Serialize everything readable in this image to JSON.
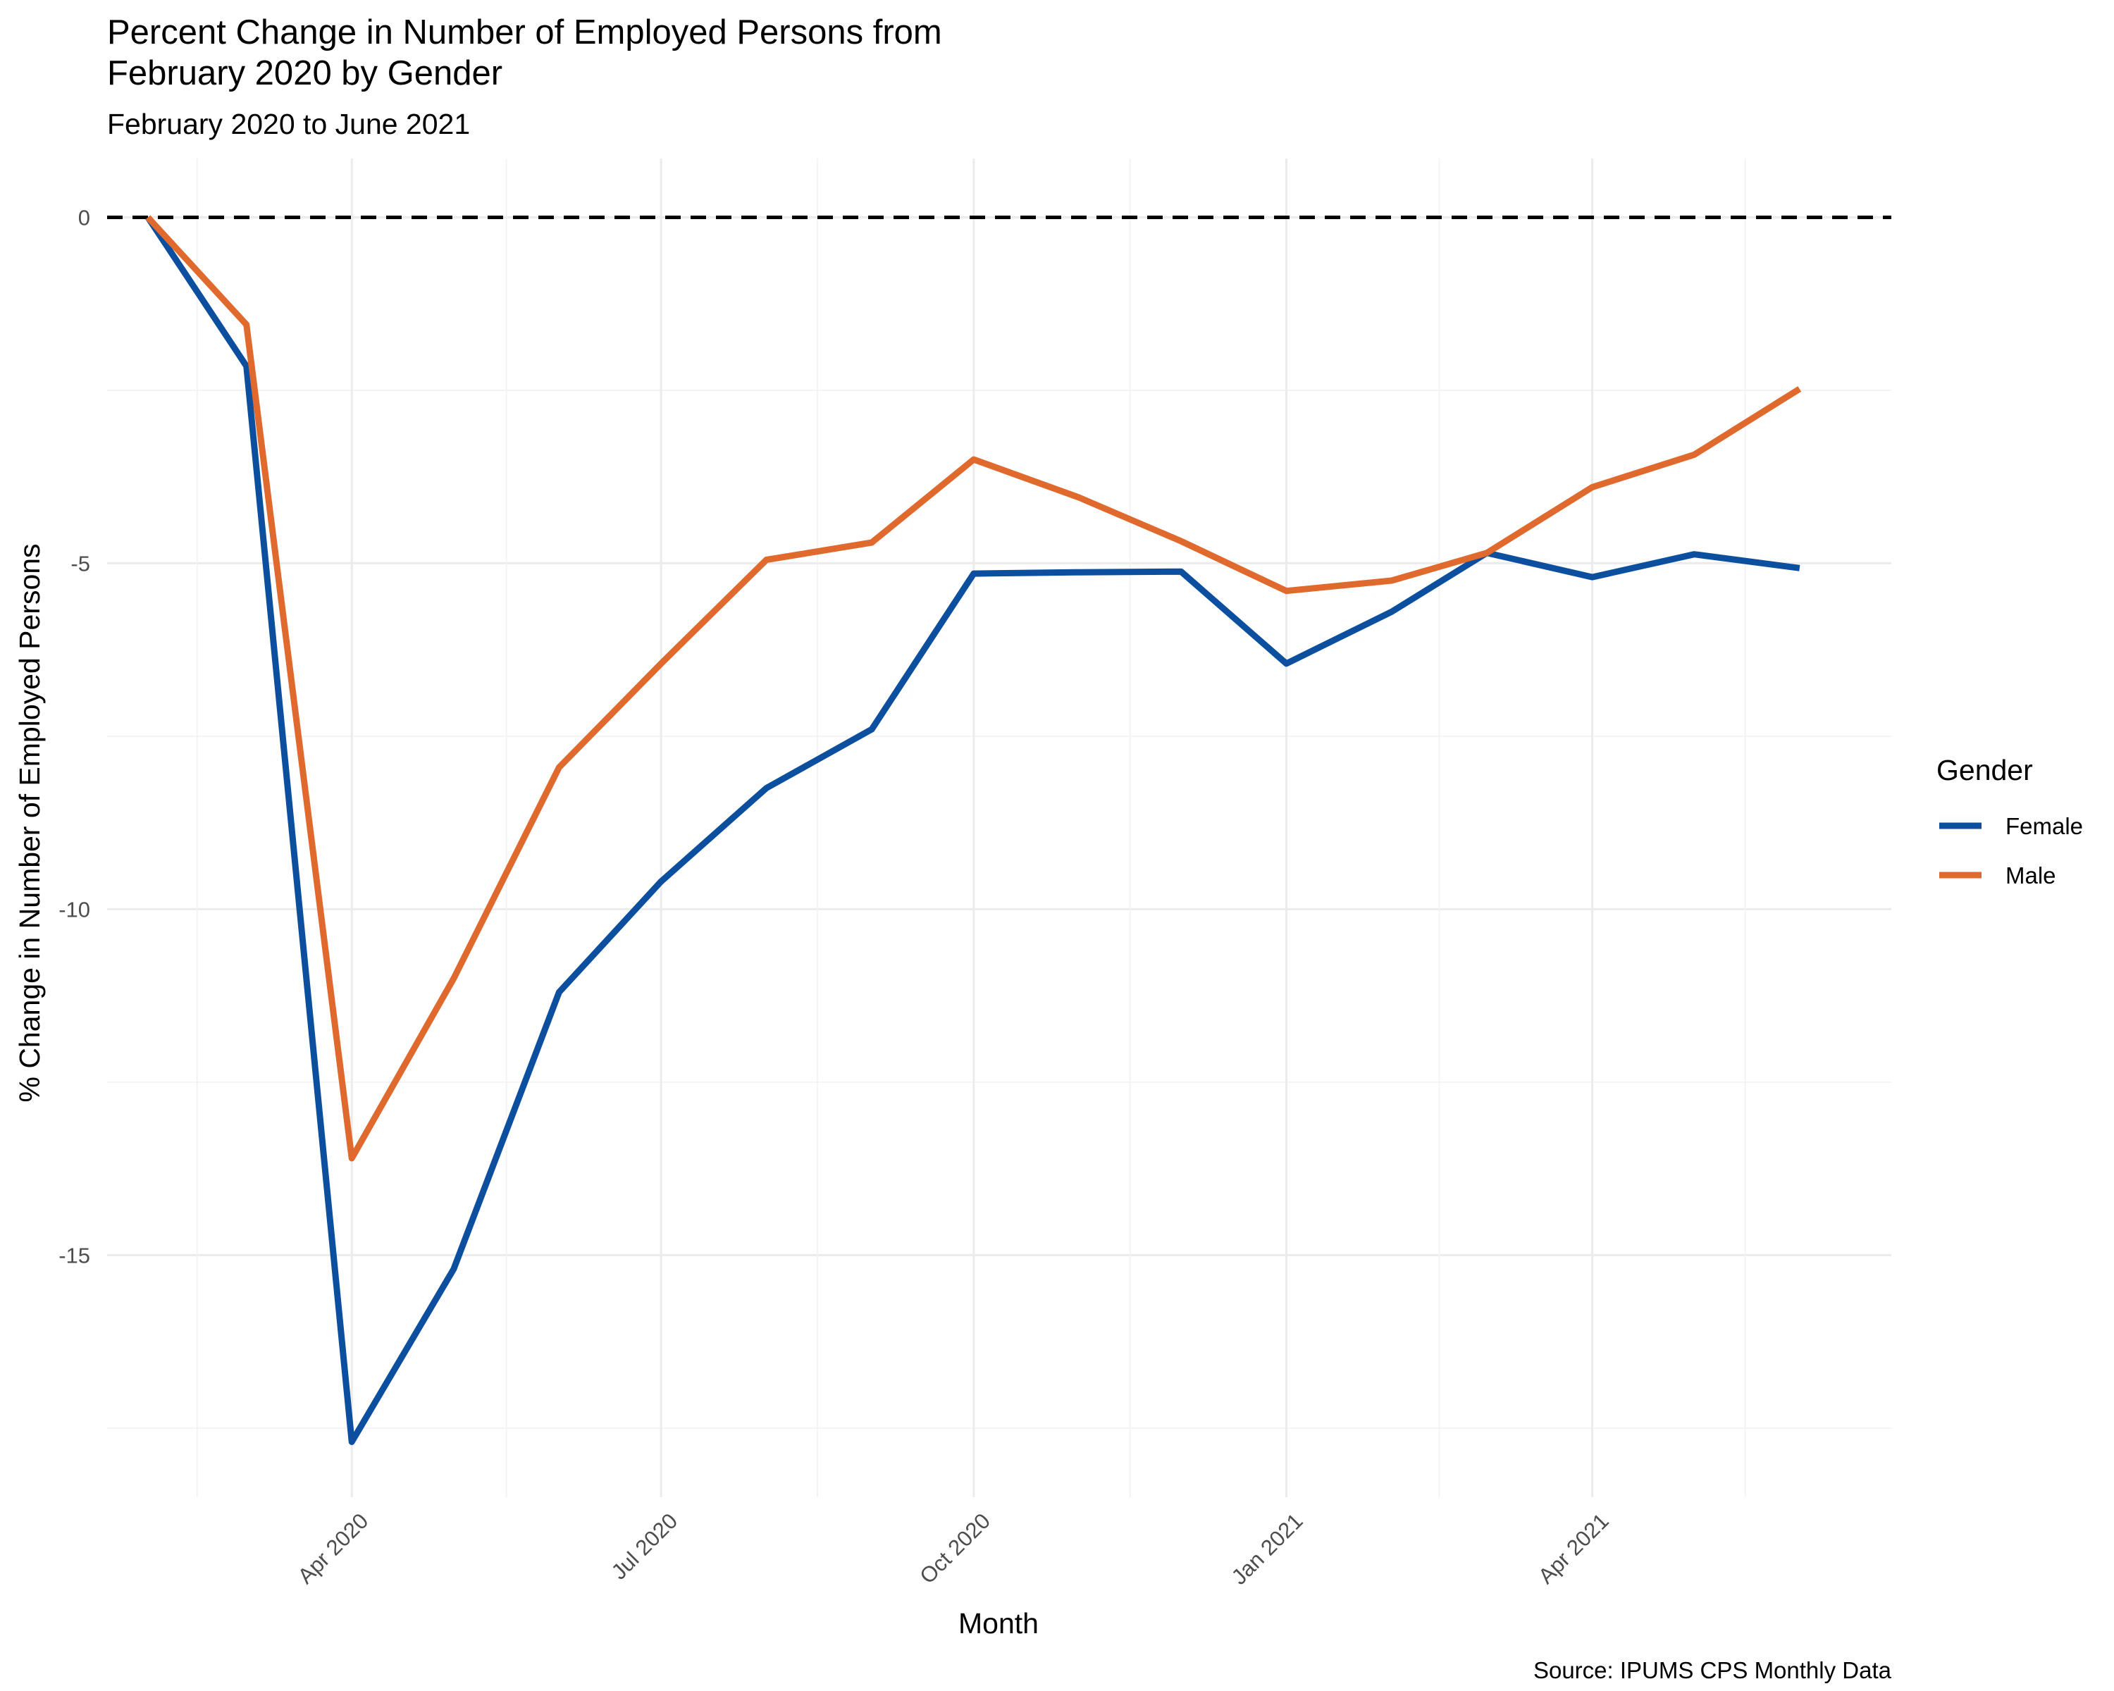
{
  "chart_data": {
    "type": "line",
    "title_line1": "Percent Change in Number of Employed Persons from",
    "title_line2": "February 2020 by Gender",
    "subtitle": "February 2020 to June 2021",
    "xlabel": "Month",
    "ylabel": "% Change in Number of Employed Persons",
    "caption": "Source: IPUMS CPS Monthly Data",
    "legend_title": "Gender",
    "legend_position": "right",
    "grid": true,
    "reference_line": {
      "y": 0,
      "style": "dashed",
      "color": "#000000"
    },
    "x": [
      "2020-02",
      "2020-03",
      "2020-04",
      "2020-05",
      "2020-06",
      "2020-07",
      "2020-08",
      "2020-09",
      "2020-10",
      "2020-11",
      "2020-12",
      "2021-01",
      "2021-02",
      "2021-03",
      "2021-04",
      "2021-05",
      "2021-06"
    ],
    "x_tick_values": [
      "2020-04",
      "2020-07",
      "2020-10",
      "2021-01",
      "2021-04"
    ],
    "x_tick_labels": [
      "Apr 2020",
      "Jul 2020",
      "Oct 2020",
      "Jan 2021",
      "Apr 2021"
    ],
    "xlim": [
      "2020-01-20",
      "2021-06-28"
    ],
    "y_ticks": [
      0,
      -5,
      -10,
      -15
    ],
    "y_tick_labels": [
      "0",
      "-5",
      "-10",
      "-15"
    ],
    "ylim": [
      -18.5,
      0.85
    ],
    "series": [
      {
        "name": "Female",
        "color": "#0b4f9e",
        "values": [
          0,
          -2.15,
          -17.7,
          -15.2,
          -11.2,
          -9.6,
          -8.25,
          -7.4,
          -5.15,
          -5.13,
          -5.12,
          -6.45,
          -5.7,
          -4.85,
          -5.2,
          -4.87,
          -5.07
        ]
      },
      {
        "name": "Male",
        "color": "#e0692e",
        "values": [
          0,
          -1.55,
          -13.6,
          -11.0,
          -7.95,
          -6.45,
          -4.95,
          -4.7,
          -3.5,
          -4.05,
          -4.68,
          -5.4,
          -5.25,
          -4.85,
          -3.9,
          -3.43,
          -2.48
        ]
      }
    ]
  }
}
